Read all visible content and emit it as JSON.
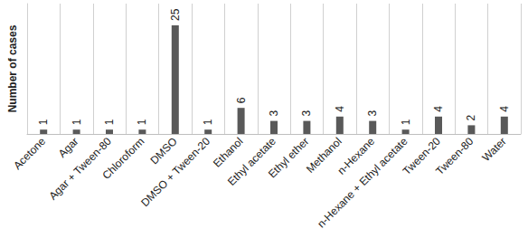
{
  "chart_data": {
    "type": "bar",
    "ylabel": "Number of cases",
    "categories": [
      "Acetone",
      "Agar",
      "Agar + Tween-80",
      "Chloroform",
      "DMSO",
      "DMSO + Tween-20",
      "Ethanol",
      "Ethyl acetate",
      "Ethyl ether",
      "Methanol",
      "n-Hexane",
      "n-Hexane + Ethyl acetate",
      "Tween-20",
      "Tween-80",
      "Water"
    ],
    "values": [
      1,
      1,
      1,
      1,
      25,
      1,
      6,
      3,
      3,
      4,
      3,
      1,
      4,
      2,
      4
    ],
    "color": "#595959",
    "ylim": [
      0,
      30
    ],
    "grid": true,
    "data_labels": true,
    "tick_labels": "x"
  }
}
